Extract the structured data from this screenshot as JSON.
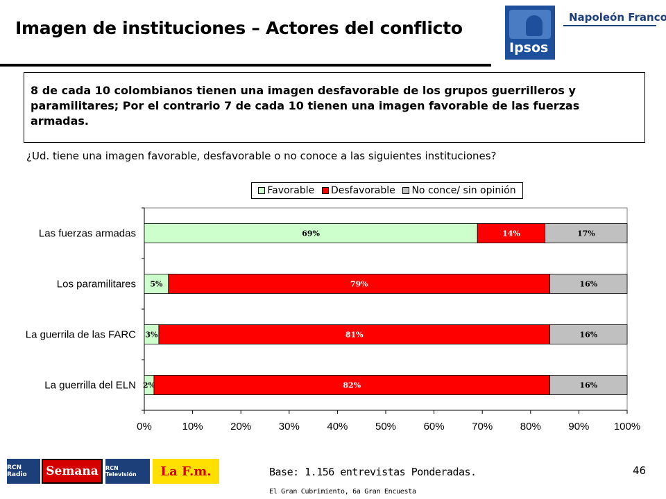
{
  "header": {
    "title": "Imagen de instituciones – Actores del conflicto",
    "logo_ipsos": "Ipsos",
    "logo_napoleon": "Napoleón Franco"
  },
  "callout": "8 de cada 10 colombianos tienen una imagen desfavorable de los grupos guerrilleros y paramilitares; Por el contrario 7 de cada 10 tienen una imagen favorable de las fuerzas armadas.",
  "question": "¿Ud. tiene una imagen favorable, desfavorable o no conoce a las siguientes instituciones?",
  "colors": {
    "favorable": "#ccffcc",
    "desfavorable": "#ff0000",
    "no_conoce": "#c0c0c0"
  },
  "chart_data": {
    "type": "bar",
    "orientation": "horizontal",
    "stacked": true,
    "categories": [
      "Las fuerzas armadas",
      "Los paramilitares",
      "La guerrila de las FARC",
      "La guerrilla del ELN"
    ],
    "series": [
      {
        "name": "Favorable",
        "values": [
          69,
          5,
          3,
          2
        ],
        "labels": [
          "69%",
          "5%",
          "3%",
          "2%"
        ]
      },
      {
        "name": "Desfavorable",
        "values": [
          14,
          79,
          81,
          82
        ],
        "labels": [
          "14%",
          "79%",
          "81%",
          "82%"
        ]
      },
      {
        "name": "No conce/ sin opinión",
        "values": [
          17,
          16,
          16,
          16
        ],
        "labels": [
          "17%",
          "16%",
          "16%",
          "16%"
        ]
      }
    ],
    "xlim": [
      0,
      100
    ],
    "xticks": [
      "0%",
      "10%",
      "20%",
      "30%",
      "40%",
      "50%",
      "60%",
      "70%",
      "80%",
      "90%",
      "100%"
    ],
    "legend_position": "top",
    "grid": false
  },
  "footer": {
    "logos": [
      "RCN Radio",
      "Semana",
      "RCN Televisión",
      "La F.m."
    ],
    "base": "Base: 1.156 entrevistas Ponderadas.",
    "page_number": "46",
    "note": "El Gran Cubrimiento, 6a Gran Encuesta"
  }
}
